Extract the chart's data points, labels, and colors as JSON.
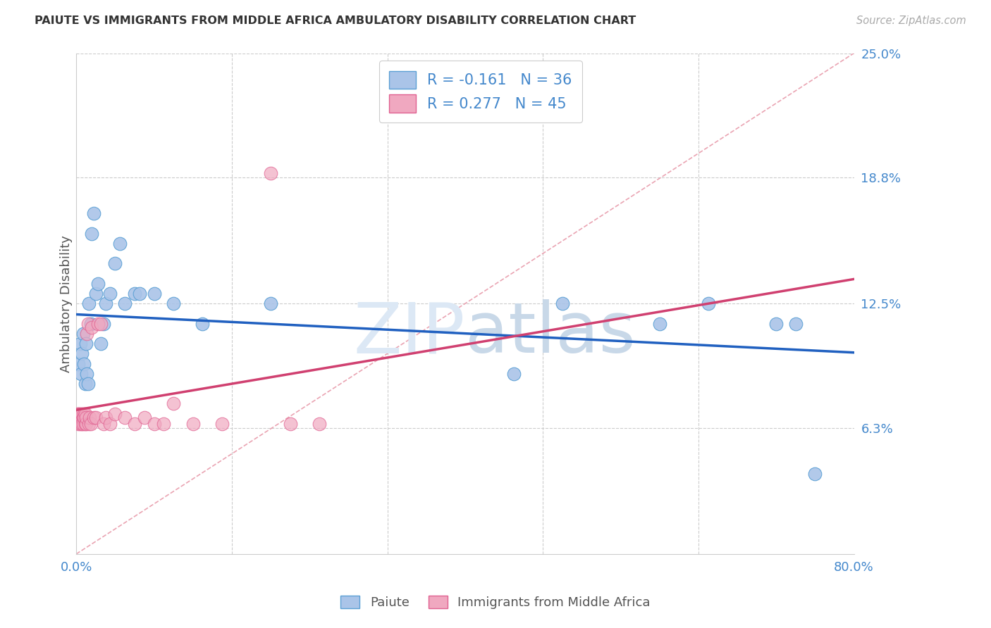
{
  "title": "PAIUTE VS IMMIGRANTS FROM MIDDLE AFRICA AMBULATORY DISABILITY CORRELATION CHART",
  "source": "Source: ZipAtlas.com",
  "ylabel": "Ambulatory Disability",
  "xlim": [
    0.0,
    0.8
  ],
  "ylim": [
    0.0,
    0.25
  ],
  "ytick_vals": [
    0.063,
    0.125,
    0.188,
    0.25
  ],
  "ytick_labels": [
    "6.3%",
    "12.5%",
    "18.8%",
    "25.0%"
  ],
  "xtick_vals": [
    0.0,
    0.16,
    0.32,
    0.48,
    0.64,
    0.8
  ],
  "xtick_labels": [
    "0.0%",
    "",
    "",
    "",
    "",
    "80.0%"
  ],
  "paiute_color": "#aac4e8",
  "immigrant_color": "#f0a8c0",
  "paiute_edge_color": "#5a9fd4",
  "immigrant_edge_color": "#e06090",
  "paiute_line_color": "#2060c0",
  "immigrant_line_color": "#d04070",
  "ref_line_color": "#e89aaa",
  "grid_color": "#cccccc",
  "legend_text_color": "#333333",
  "axis_label_color": "#555555",
  "tick_label_color": "#4488cc",
  "watermark_color": "#dce8f5",
  "paiute_R": -0.161,
  "paiute_N": 36,
  "immigrant_R": 0.277,
  "immigrant_N": 45,
  "paiute_x": [
    0.002,
    0.004,
    0.005,
    0.006,
    0.007,
    0.008,
    0.009,
    0.01,
    0.011,
    0.012,
    0.013,
    0.015,
    0.016,
    0.018,
    0.02,
    0.022,
    0.025,
    0.028,
    0.03,
    0.035,
    0.04,
    0.045,
    0.05,
    0.06,
    0.065,
    0.08,
    0.1,
    0.13,
    0.2,
    0.45,
    0.5,
    0.6,
    0.65,
    0.72,
    0.74,
    0.76
  ],
  "paiute_y": [
    0.095,
    0.105,
    0.09,
    0.1,
    0.11,
    0.095,
    0.085,
    0.105,
    0.09,
    0.085,
    0.125,
    0.115,
    0.16,
    0.17,
    0.13,
    0.135,
    0.105,
    0.115,
    0.125,
    0.13,
    0.145,
    0.155,
    0.125,
    0.13,
    0.13,
    0.13,
    0.125,
    0.115,
    0.125,
    0.09,
    0.125,
    0.115,
    0.125,
    0.115,
    0.115,
    0.04
  ],
  "immigrant_x": [
    0.001,
    0.001,
    0.002,
    0.002,
    0.003,
    0.003,
    0.004,
    0.004,
    0.005,
    0.005,
    0.006,
    0.006,
    0.007,
    0.007,
    0.008,
    0.008,
    0.009,
    0.009,
    0.01,
    0.01,
    0.011,
    0.012,
    0.013,
    0.014,
    0.015,
    0.016,
    0.018,
    0.02,
    0.022,
    0.025,
    0.028,
    0.03,
    0.035,
    0.04,
    0.05,
    0.06,
    0.07,
    0.08,
    0.09,
    0.1,
    0.12,
    0.15,
    0.2,
    0.22,
    0.25
  ],
  "immigrant_y": [
    0.07,
    0.068,
    0.07,
    0.065,
    0.068,
    0.07,
    0.065,
    0.068,
    0.07,
    0.068,
    0.065,
    0.07,
    0.068,
    0.065,
    0.07,
    0.068,
    0.065,
    0.07,
    0.065,
    0.068,
    0.11,
    0.115,
    0.065,
    0.068,
    0.065,
    0.113,
    0.068,
    0.068,
    0.115,
    0.115,
    0.065,
    0.068,
    0.065,
    0.07,
    0.068,
    0.065,
    0.068,
    0.065,
    0.065,
    0.075,
    0.065,
    0.065,
    0.19,
    0.065,
    0.065
  ]
}
